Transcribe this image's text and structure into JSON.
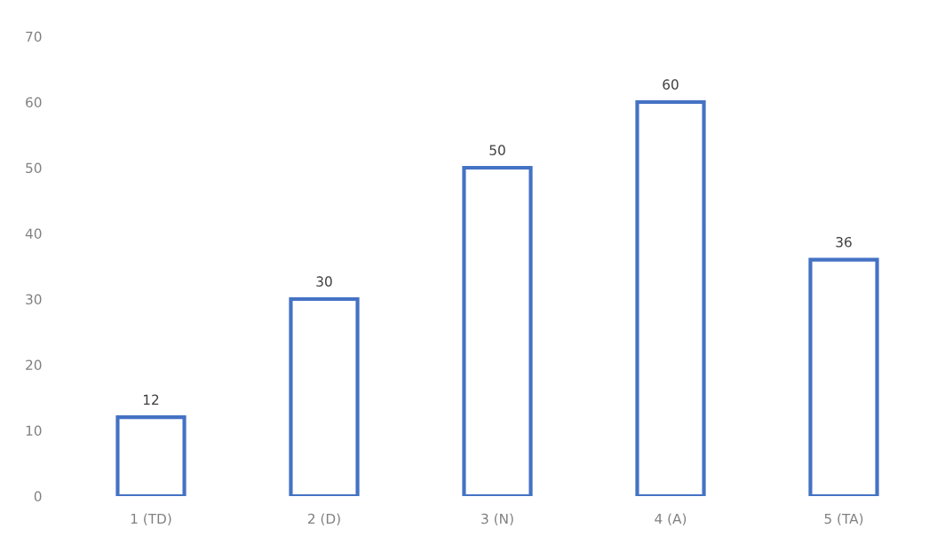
{
  "chart_data": {
    "type": "bar",
    "categories": [
      "1 (TD)",
      "2 (D)",
      "3 (N)",
      "4 (A)",
      "5 (TA)"
    ],
    "values": [
      12,
      30,
      50,
      60,
      36
    ],
    "color": "#4472c4",
    "ylim": [
      0,
      70
    ],
    "yticks": [
      0,
      10,
      20,
      30,
      40,
      50,
      60,
      70
    ],
    "grid": false,
    "data_labels": true
  }
}
